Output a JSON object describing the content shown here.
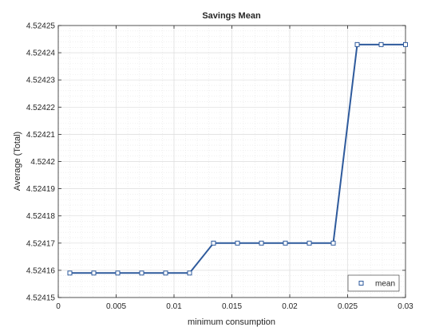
{
  "chart_data": {
    "type": "line",
    "title": "Savings Mean",
    "xlabel": "minimum consumption",
    "ylabel": "Average (Total)",
    "xlim": [
      0,
      0.03
    ],
    "ylim": [
      4.52415,
      4.52425
    ],
    "xticks": [
      0,
      0.005,
      0.01,
      0.015,
      0.02,
      0.025,
      0.03
    ],
    "xtick_labels": [
      "0",
      "0.005",
      "0.01",
      "0.015",
      "0.02",
      "0.025",
      "0.03"
    ],
    "yticks": [
      4.52415,
      4.52416,
      4.52417,
      4.52418,
      4.52419,
      4.5242,
      4.52421,
      4.52422,
      4.52423,
      4.52424,
      4.52425
    ],
    "ytick_labels": [
      "4.52415",
      "4.52416",
      "4.52417",
      "4.52418",
      "4.52419",
      "4.5242",
      "4.52421",
      "4.52422",
      "4.52423",
      "4.52424",
      "4.52425"
    ],
    "grid": true,
    "minor_grid": true,
    "legend_position": "bottom-right",
    "series": [
      {
        "name": "mean",
        "color": "#2e5a9c",
        "marker": "square",
        "x": [
          0.001,
          0.003069,
          0.005138,
          0.007207,
          0.009276,
          0.011345,
          0.013414,
          0.015483,
          0.017552,
          0.019621,
          0.02169,
          0.023759,
          0.025828,
          0.027897,
          0.03
        ],
        "y": [
          4.524159,
          4.524159,
          4.524159,
          4.524159,
          4.524159,
          4.524159,
          4.52417,
          4.52417,
          4.52417,
          4.52417,
          4.52417,
          4.52417,
          4.524243,
          4.524243,
          4.524243
        ]
      }
    ]
  }
}
